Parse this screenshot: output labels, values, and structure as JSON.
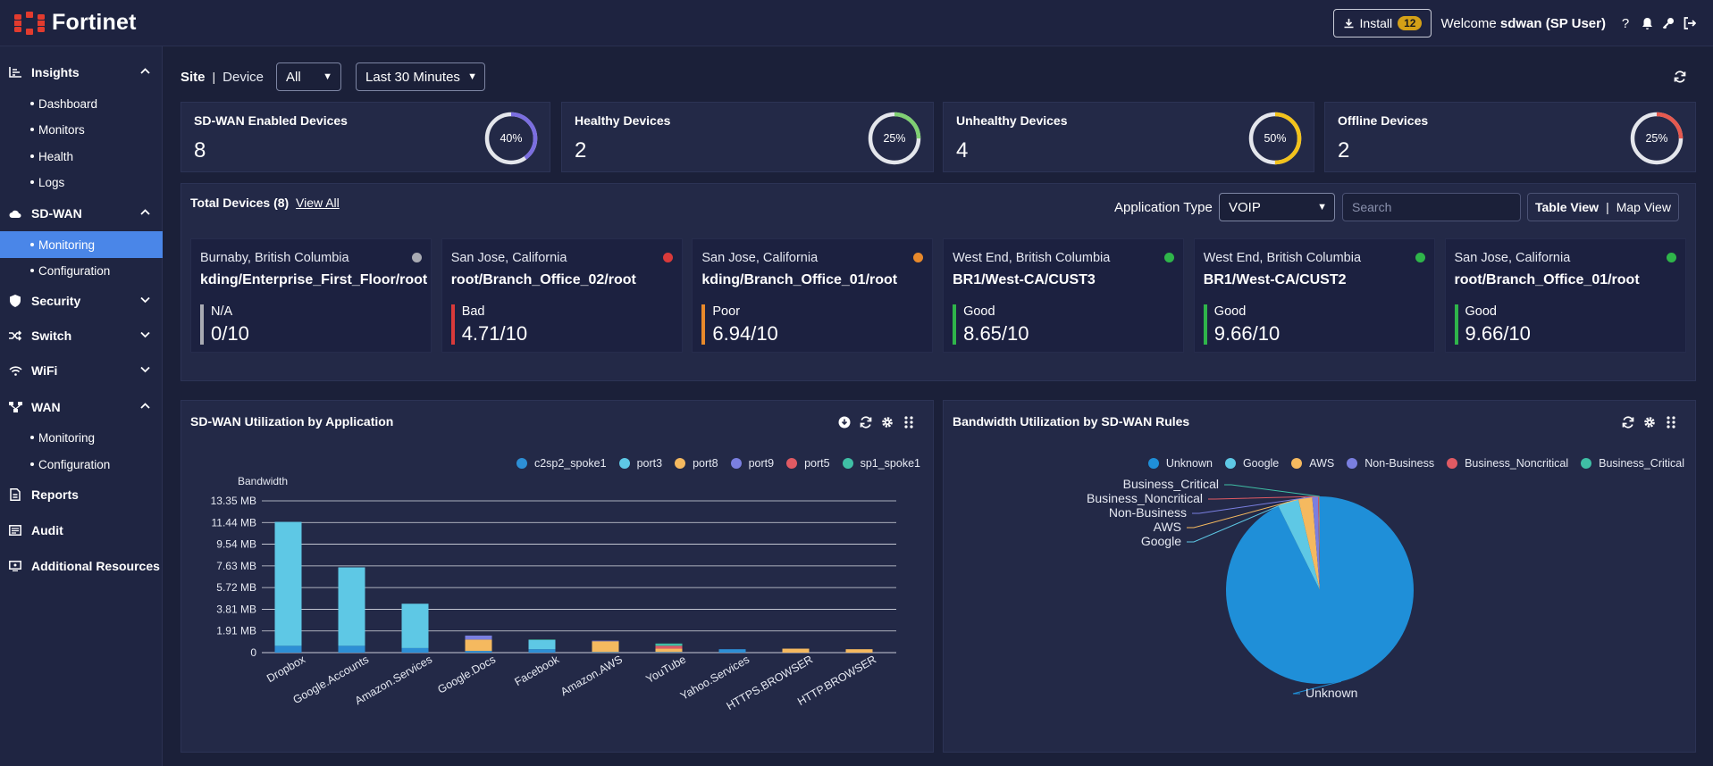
{
  "brand": {
    "name": "Fortinet",
    "color": "#e23b2e"
  },
  "topbar": {
    "install_label": "Install",
    "install_count": "12",
    "welcome_text": "Welcome",
    "user": "sdwan (SP User)",
    "icons": [
      "help-icon",
      "bell-icon",
      "key-icon",
      "logout-icon"
    ]
  },
  "sidebar": {
    "sections": [
      {
        "label": "Insights",
        "icon": "chart-icon",
        "expanded": true,
        "items": [
          "Dashboard",
          "Monitors",
          "Health",
          "Logs"
        ]
      },
      {
        "label": "SD-WAN",
        "icon": "cloud-icon",
        "expanded": true,
        "items": [
          "Monitoring",
          "Configuration"
        ],
        "active_item": "Monitoring"
      },
      {
        "label": "Security",
        "icon": "shield-icon",
        "expanded": false
      },
      {
        "label": "Switch",
        "icon": "switch-icon",
        "expanded": false
      },
      {
        "label": "WiFi",
        "icon": "wifi-icon",
        "expanded": false
      },
      {
        "label": "WAN",
        "icon": "network-icon",
        "expanded": true,
        "items": [
          "Monitoring",
          "Configuration"
        ]
      },
      {
        "label": "Reports",
        "icon": "report-icon"
      },
      {
        "label": "Audit",
        "icon": "audit-icon"
      },
      {
        "label": "Additional Resources",
        "icon": "resources-icon"
      }
    ]
  },
  "filters": {
    "site_label": "Site",
    "device_label": "Device",
    "scope_value": "All",
    "time_value": "Last 30 Minutes"
  },
  "kpis": [
    {
      "title": "SD-WAN Enabled Devices",
      "value": "8",
      "percent_label": "40%",
      "percent": 40,
      "color": "#7b6ee0"
    },
    {
      "title": "Healthy Devices",
      "value": "2",
      "percent_label": "25%",
      "percent": 25,
      "color": "#7fcf72"
    },
    {
      "title": "Unhealthy Devices",
      "value": "4",
      "percent_label": "50%",
      "percent": 50,
      "color": "#f2c21b"
    },
    {
      "title": "Offline Devices",
      "value": "2",
      "percent_label": "25%",
      "percent": 25,
      "color": "#e6594f"
    }
  ],
  "devices_panel": {
    "title": "Total Devices (8)",
    "view_all": "View All",
    "app_type_label": "Application Type",
    "app_type_value": "VOIP",
    "search_placeholder": "Search",
    "table_view": "Table View",
    "map_view": "Map View",
    "devices": [
      {
        "location": "Burnaby, British Columbia",
        "name": "kding/Enterprise_First_Floor/root",
        "status": "N/A",
        "score": "0/10",
        "color": "#a9abb3"
      },
      {
        "location": "San Jose, California",
        "name": "root/Branch_Office_02/root",
        "status": "Bad",
        "score": "4.71/10",
        "color": "#d93a3a"
      },
      {
        "location": "San Jose, California",
        "name": "kding/Branch_Office_01/root",
        "status": "Poor",
        "score": "6.94/10",
        "color": "#e8892b"
      },
      {
        "location": "West End, British Columbia",
        "name": "BR1/West-CA/CUST3",
        "status": "Good",
        "score": "8.65/10",
        "color": "#2fb54a"
      },
      {
        "location": "West End, British Columbia",
        "name": "BR1/West-CA/CUST2",
        "status": "Good",
        "score": "9.66/10",
        "color": "#2fb54a"
      },
      {
        "location": "San Jose, California",
        "name": "root/Branch_Office_01/root",
        "status": "Good",
        "score": "9.66/10",
        "color": "#2fb54a"
      }
    ]
  },
  "app_panel": {
    "title": "SD-WAN Utilization by Application"
  },
  "rules_panel": {
    "title": "Bandwidth Utilization by SD-WAN Rules"
  },
  "chart_data": [
    {
      "type": "bar",
      "stacked": true,
      "title": "SD-WAN Utilization by Application",
      "ylabel": "Bandwidth",
      "ylim": [
        0,
        13.35
      ],
      "y_ticks": [
        "0",
        "1.91 MB",
        "3.81 MB",
        "5.72 MB",
        "7.63 MB",
        "9.54 MB",
        "11.44 MB",
        "13.35 MB"
      ],
      "categories": [
        "Dropbox",
        "Google.Accounts",
        "Amazon.Services",
        "Google.Docs",
        "Facebook",
        "Amazon.AWS",
        "YouTube",
        "Yahoo.Services",
        "HTTPS.BROWSER",
        "HTTP.BROWSER"
      ],
      "legend_position": "top-right",
      "series": [
        {
          "name": "c2sp2_spoke1",
          "color": "#2d8fd5",
          "values": [
            0.6,
            0.6,
            0.4,
            0.15,
            0.3,
            0.05,
            0.05,
            0.3,
            0,
            0
          ]
        },
        {
          "name": "port3",
          "color": "#5ec8e5",
          "values": [
            10.9,
            6.9,
            3.9,
            0,
            0.8,
            0,
            0,
            0,
            0,
            0
          ]
        },
        {
          "name": "port8",
          "color": "#f5b95f",
          "values": [
            0,
            0,
            0,
            1.0,
            0,
            0.95,
            0.3,
            0,
            0.35,
            0.3
          ]
        },
        {
          "name": "port9",
          "color": "#7a7fe0",
          "values": [
            0,
            0,
            0,
            0.35,
            0,
            0.05,
            0,
            0,
            0,
            0
          ]
        },
        {
          "name": "port5",
          "color": "#e05a63",
          "values": [
            0,
            0,
            0,
            0,
            0,
            0,
            0.25,
            0,
            0,
            0
          ]
        },
        {
          "name": "sp1_spoke1",
          "color": "#3fbfa5",
          "values": [
            0,
            0,
            0,
            0,
            0.05,
            0,
            0.2,
            0,
            0,
            0
          ]
        }
      ]
    },
    {
      "type": "pie",
      "title": "Bandwidth Utilization by SD-WAN Rules",
      "legend_position": "top",
      "slices": [
        {
          "name": "Unknown",
          "color": "#1f8fd8",
          "value": 92.7
        },
        {
          "name": "Google",
          "color": "#5ec8e5",
          "value": 3.6
        },
        {
          "name": "AWS",
          "color": "#f5b95f",
          "value": 2.4
        },
        {
          "name": "Non-Business",
          "color": "#7a7fe0",
          "value": 1.0
        },
        {
          "name": "Business_Noncritical",
          "color": "#e05a63",
          "value": 0.2
        },
        {
          "name": "Business_Critical",
          "color": "#3fbfa5",
          "value": 0.1
        }
      ]
    }
  ]
}
